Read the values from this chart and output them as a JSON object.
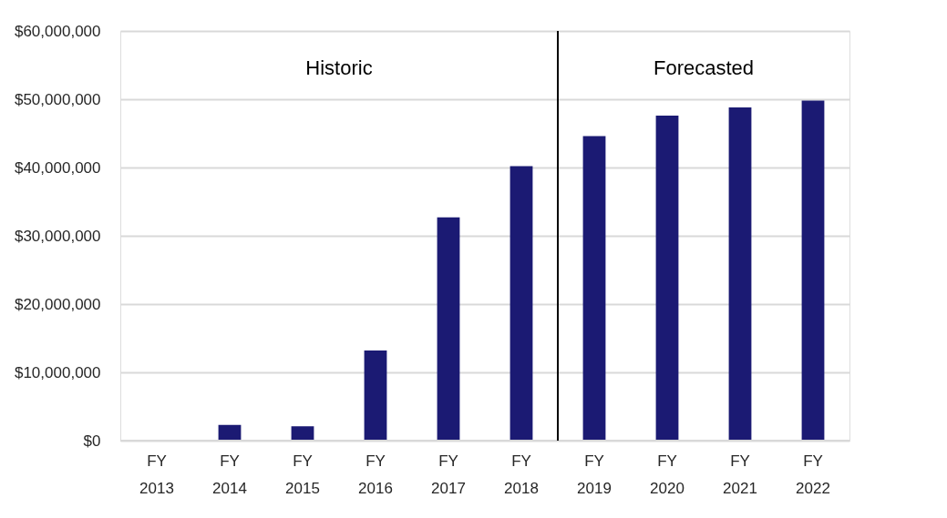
{
  "chart_data": {
    "type": "bar",
    "categories": [
      "FY 2013",
      "FY 2014",
      "FY 2015",
      "FY 2016",
      "FY 2017",
      "FY 2018",
      "FY 2019",
      "FY 2020",
      "FY 2021",
      "FY 2022"
    ],
    "values": [
      0,
      2300000.0,
      2100000.0,
      13200000.0,
      32700000.0,
      40200000.0,
      44600000.0,
      47600000.0,
      48800000.0,
      49800000.0
    ],
    "color": "#1b1a73",
    "ylim": [
      0,
      60000000
    ],
    "yticks": [
      {
        "value": 0,
        "label": "$0"
      },
      {
        "value": 10000000,
        "label": "$10,000,000"
      },
      {
        "value": 20000000,
        "label": "$20,000,000"
      },
      {
        "value": 30000000,
        "label": "$30,000,000"
      },
      {
        "value": 40000000,
        "label": "$40,000,000"
      },
      {
        "value": 50000000,
        "label": "$50,000,000"
      },
      {
        "value": 60000000,
        "label": "$60,000,000"
      }
    ],
    "ref_lines": [
      {
        "axis": "x",
        "value": "FY 2019",
        "color": "#000000"
      }
    ],
    "annotations": [
      "Historic",
      "Forecasted"
    ],
    "grid": "y"
  }
}
